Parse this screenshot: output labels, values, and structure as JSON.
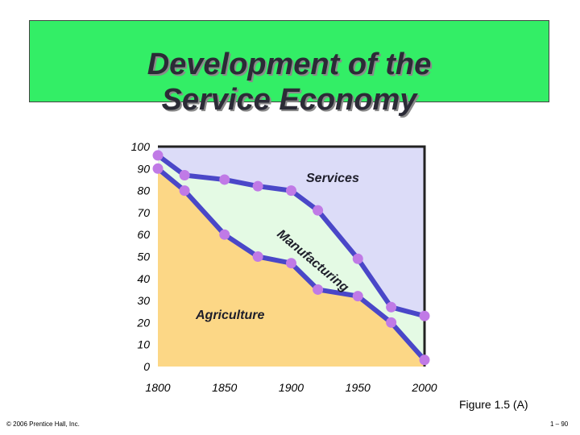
{
  "slide": {
    "title_line1": "Development of the",
    "title_line2": "Service Economy",
    "figure_caption": "Figure 1.5 (A)",
    "copyright": "© 2006 Prentice Hall, Inc.",
    "page_number": "1 – 90"
  },
  "colors": {
    "title_bg": "#33ee66",
    "services_area": "#dcdcf8",
    "manufacturing_area": "#e4fae4",
    "agriculture_area": "#fcd786",
    "line": "#4a47c8",
    "point": "#c07ae6"
  },
  "chart_data": {
    "type": "area",
    "title": "",
    "xlabel": "",
    "ylabel": "",
    "x": [
      1800,
      1820,
      1850,
      1875,
      1900,
      1920,
      1950,
      1975,
      2000
    ],
    "x_ticks": [
      "1800",
      "1850",
      "1900",
      "1950",
      "2000"
    ],
    "y_ticks": [
      "0",
      "10",
      "20",
      "30",
      "40",
      "50",
      "60",
      "70",
      "80",
      "90",
      "100"
    ],
    "xlim": [
      1800,
      2000
    ],
    "ylim": [
      0,
      100
    ],
    "series": [
      {
        "name": "Agriculture",
        "boundary_values": [
          90,
          80,
          60,
          50,
          47,
          35,
          32,
          20,
          3
        ]
      },
      {
        "name": "Manufacturing",
        "boundary_values": [
          96,
          87,
          85,
          82,
          80,
          71,
          49,
          27,
          23
        ]
      },
      {
        "name": "Services",
        "boundary_values": [
          100,
          100,
          100,
          100,
          100,
          100,
          100,
          100,
          100
        ]
      }
    ],
    "region_labels": {
      "services": "Services",
      "manufacturing": "Manufacturing",
      "agriculture": "Agriculture"
    },
    "grid": false,
    "legend": "none"
  }
}
